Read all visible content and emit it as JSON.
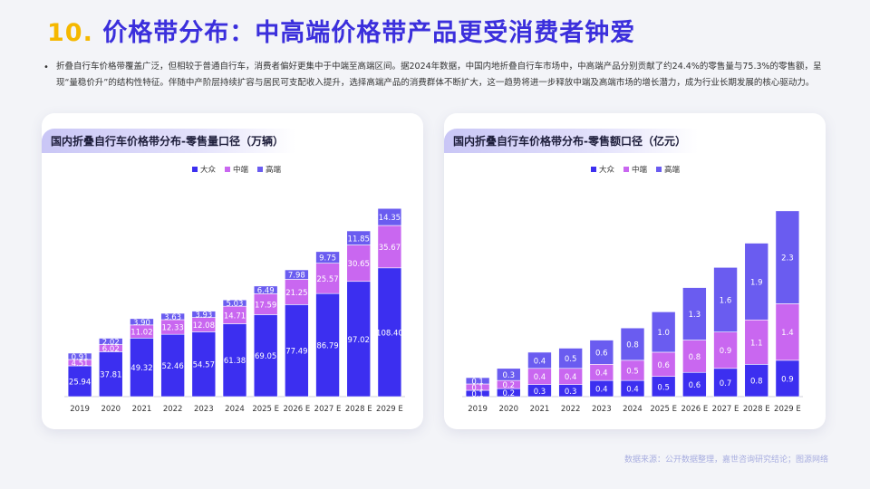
{
  "page": {
    "number": "10.",
    "title": "价格带分布：中高端价格带产品更受消费者钟爱",
    "bullet": "折叠自行车价格带覆盖广泛，但相较于普通自行车，消费者偏好更集中于中端至高端区间。据2024年数据，中国内地折叠自行车市场中，中高端产品分别贡献了约24.4%的零售量与75.3%的零售额，呈现“量稳价升”的结构性特征。伴随中产阶层持续扩容与居民可支配收入提升，选择高端产品的消费群体不断扩大，这一趋势将进一步释放中端及高端市场的增长潜力，成为行业长期发展的核心驱动力。",
    "source": "数据来源：公开数据整理，嘉世咨询研究结论；图源网络"
  },
  "colors": {
    "mass": "#3c2ff0",
    "mid": "#c967f0",
    "high": "#6a5cf0",
    "title": "#3b2fdc",
    "accent": "#f5b800"
  },
  "chart_data": [
    {
      "type": "bar",
      "stacked": true,
      "title": "国内折叠自行车价格带分布-零售量口径（万辆）",
      "categories": [
        "2019",
        "2020",
        "2021",
        "2022",
        "2023",
        "2024",
        "2025 E",
        "2026 E",
        "2027 E",
        "2028 E",
        "2029 E"
      ],
      "series": [
        {
          "name": "大众",
          "values": [
            25.94,
            37.81,
            49.32,
            52.46,
            54.57,
            61.38,
            69.05,
            77.49,
            86.79,
            97.02,
            108.4
          ]
        },
        {
          "name": "中端",
          "values": [
            4.51,
            6.02,
            11.02,
            12.33,
            12.08,
            14.71,
            17.59,
            21.25,
            25.57,
            30.65,
            35.67
          ]
        },
        {
          "name": "高端",
          "values": [
            0.91,
            2.02,
            3.9,
            3.63,
            3.93,
            5.03,
            6.49,
            7.98,
            9.75,
            11.85,
            14.35
          ]
        }
      ],
      "labels": [
        [
          "25.94",
          "37.81",
          "49.32",
          "52.46",
          "54.57",
          "61.38",
          "69.05",
          "77.49",
          "86.79",
          "97.02",
          "108.40"
        ],
        [
          "4.51",
          "6.02",
          "11.02",
          "12.33",
          "12.08",
          "14.71",
          "17.59",
          "21.25",
          "25.57",
          "30.65",
          "35.67"
        ],
        [
          "0.91",
          "2.02",
          "3.90",
          "3.63",
          "3.93",
          "5.03",
          "6.49",
          "7.98",
          "9.75",
          "11.85",
          "14.35"
        ]
      ],
      "ylim": [
        0,
        170
      ],
      "legend_position": "top-center"
    },
    {
      "type": "bar",
      "stacked": true,
      "title": "国内折叠自行车价格带分布-零售额口径（亿元）",
      "categories": [
        "2019",
        "2020",
        "2021",
        "2022",
        "2023",
        "2024",
        "2025 E",
        "2026 E",
        "2027 E",
        "2028 E",
        "2029 E"
      ],
      "series": [
        {
          "name": "大众",
          "values": [
            0.1,
            0.2,
            0.3,
            0.3,
            0.4,
            0.4,
            0.5,
            0.6,
            0.7,
            0.8,
            0.9
          ]
        },
        {
          "name": "中端",
          "values": [
            0.1,
            0.2,
            0.4,
            0.4,
            0.4,
            0.5,
            0.6,
            0.8,
            0.9,
            1.1,
            1.4
          ]
        },
        {
          "name": "高端",
          "values": [
            0.1,
            0.3,
            0.4,
            0.5,
            0.6,
            0.8,
            1.0,
            1.3,
            1.6,
            1.9,
            2.3
          ]
        }
      ],
      "labels": [
        [
          "0.1",
          "0.2",
          "0.3",
          "0.3",
          "0.4",
          "0.4",
          "0.5",
          "0.6",
          "0.7",
          "0.8",
          "0.9"
        ],
        [
          "0.1",
          "0.2",
          "0.4",
          "0.4",
          "0.4",
          "0.5",
          "0.6",
          "0.8",
          "0.9",
          "1.1",
          "1.4"
        ],
        [
          "0.1",
          "0.3",
          "0.4",
          "0.5",
          "0.6",
          "0.8",
          "1.0",
          "1.3",
          "1.6",
          "1.9",
          "2.3"
        ]
      ],
      "ylim": [
        0,
        5.0
      ],
      "legend_position": "top-center"
    }
  ]
}
